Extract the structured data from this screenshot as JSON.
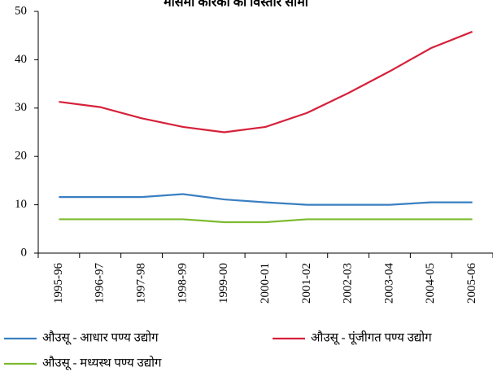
{
  "chart_data": {
    "type": "line",
    "title": "मौसमी कारकों की विस्तार सीमा",
    "categories": [
      "1995-96",
      "1996-97",
      "1997-98",
      "1998-99",
      "1999-00",
      "2000-01",
      "2001-02",
      "2002-03",
      "2003-04",
      "2004-05",
      "2005-06"
    ],
    "series": [
      {
        "name": "औउसू - आधार पण्य उद्योग",
        "color": "#3a7fc1",
        "values": [
          11.6,
          11.6,
          11.6,
          12.2,
          11.1,
          10.5,
          10.0,
          10.0,
          10.0,
          10.5,
          10.5
        ]
      },
      {
        "name": "औउसू - पूंजीगत पण्य उद्योग",
        "color": "#d6203a",
        "values": [
          31.3,
          30.2,
          27.9,
          26.1,
          25.0,
          26.1,
          29.0,
          33.1,
          37.6,
          42.4,
          45.8
        ]
      },
      {
        "name": "औउसू - मध्यस्थ पण्य उद्योग",
        "color": "#7dba2f",
        "values": [
          7.0,
          7.0,
          7.0,
          7.0,
          6.4,
          6.4,
          7.0,
          7.0,
          7.0,
          7.0,
          7.0
        ]
      }
    ],
    "ylim": [
      0,
      50
    ],
    "yticks": [
      0,
      10,
      20,
      30,
      40,
      50
    ],
    "grid": false
  }
}
